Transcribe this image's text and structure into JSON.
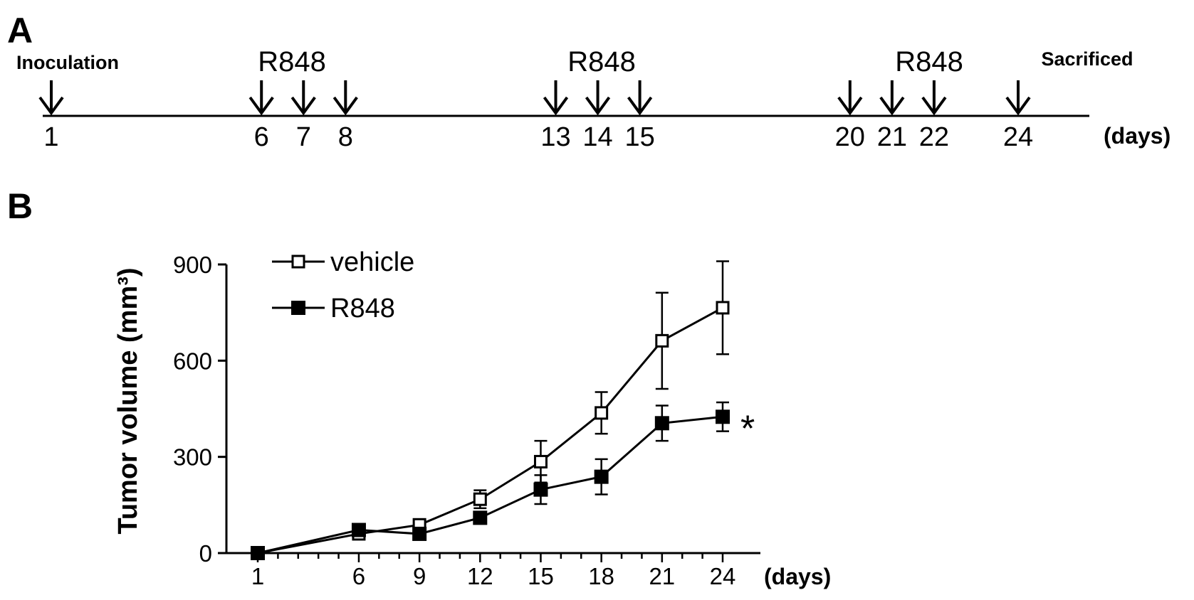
{
  "panel_a": {
    "letter": "A",
    "inoculation_label": "Inoculation",
    "sacrificed_label": "Sacrificed",
    "treatment_label": "R848",
    "unit_label": "(days)",
    "days": [
      "1",
      "6",
      "7",
      "8",
      "13",
      "14",
      "15",
      "20",
      "21",
      "22",
      "24"
    ],
    "treatment_groups": [
      [
        "6",
        "7",
        "8"
      ],
      [
        "13",
        "14",
        "15"
      ],
      [
        "20",
        "21",
        "22"
      ]
    ]
  },
  "panel_b": {
    "letter": "B"
  },
  "chart_data": {
    "type": "line",
    "ylabel": "Tumor volume (mm³)",
    "xlabel_unit": "(days)",
    "x": [
      1,
      6,
      9,
      12,
      15,
      18,
      21,
      24
    ],
    "x_tick_labels": [
      "1",
      "6",
      "9",
      "12",
      "15",
      "18",
      "21",
      "24"
    ],
    "y_tick_labels": [
      "0",
      "300",
      "600",
      "900"
    ],
    "ylim": [
      0,
      900
    ],
    "legend_position": "top-left",
    "series": [
      {
        "name": "vehicle",
        "marker": "open-square",
        "values": [
          0,
          60,
          88,
          168,
          285,
          437,
          662,
          765
        ],
        "errors": [
          0,
          10,
          12,
          28,
          65,
          65,
          150,
          145
        ]
      },
      {
        "name": "R848",
        "marker": "filled-square",
        "values": [
          0,
          72,
          60,
          110,
          198,
          238,
          405,
          425
        ],
        "errors": [
          0,
          8,
          10,
          12,
          45,
          55,
          55,
          45
        ]
      }
    ],
    "annotation": "*",
    "annotation_series": "R848"
  }
}
